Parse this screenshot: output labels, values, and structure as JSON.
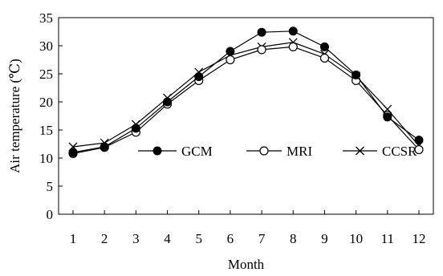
{
  "chart_data": {
    "type": "line",
    "title": "",
    "xlabel": "Month",
    "ylabel": "Air temperature (℃)",
    "x": [
      1,
      2,
      3,
      4,
      5,
      6,
      7,
      8,
      9,
      10,
      11,
      12
    ],
    "xticks": [
      "1",
      "2",
      "3",
      "4",
      "5",
      "6",
      "7",
      "8",
      "9",
      "10",
      "11",
      "12"
    ],
    "yticks": [
      "0",
      "5",
      "10",
      "15",
      "20",
      "25",
      "30",
      "35"
    ],
    "ylim": [
      0,
      35
    ],
    "grid": false,
    "legend_position": "inside-lower-center",
    "series": [
      {
        "name": "GCM",
        "marker": "filled-circle",
        "values": [
          11.0,
          12.0,
          15.3,
          20.0,
          24.5,
          29.0,
          32.4,
          32.6,
          29.8,
          24.8,
          17.3,
          13.2
        ]
      },
      {
        "name": "MRI",
        "marker": "open-circle",
        "values": [
          10.8,
          11.9,
          14.6,
          19.6,
          23.8,
          27.5,
          29.3,
          29.8,
          27.8,
          23.8,
          17.6,
          11.5
        ]
      },
      {
        "name": "CCSR",
        "marker": "cross",
        "values": [
          12.0,
          12.7,
          16.0,
          20.7,
          25.3,
          28.3,
          29.8,
          30.6,
          28.5,
          24.6,
          18.7,
          12.2
        ]
      }
    ]
  }
}
